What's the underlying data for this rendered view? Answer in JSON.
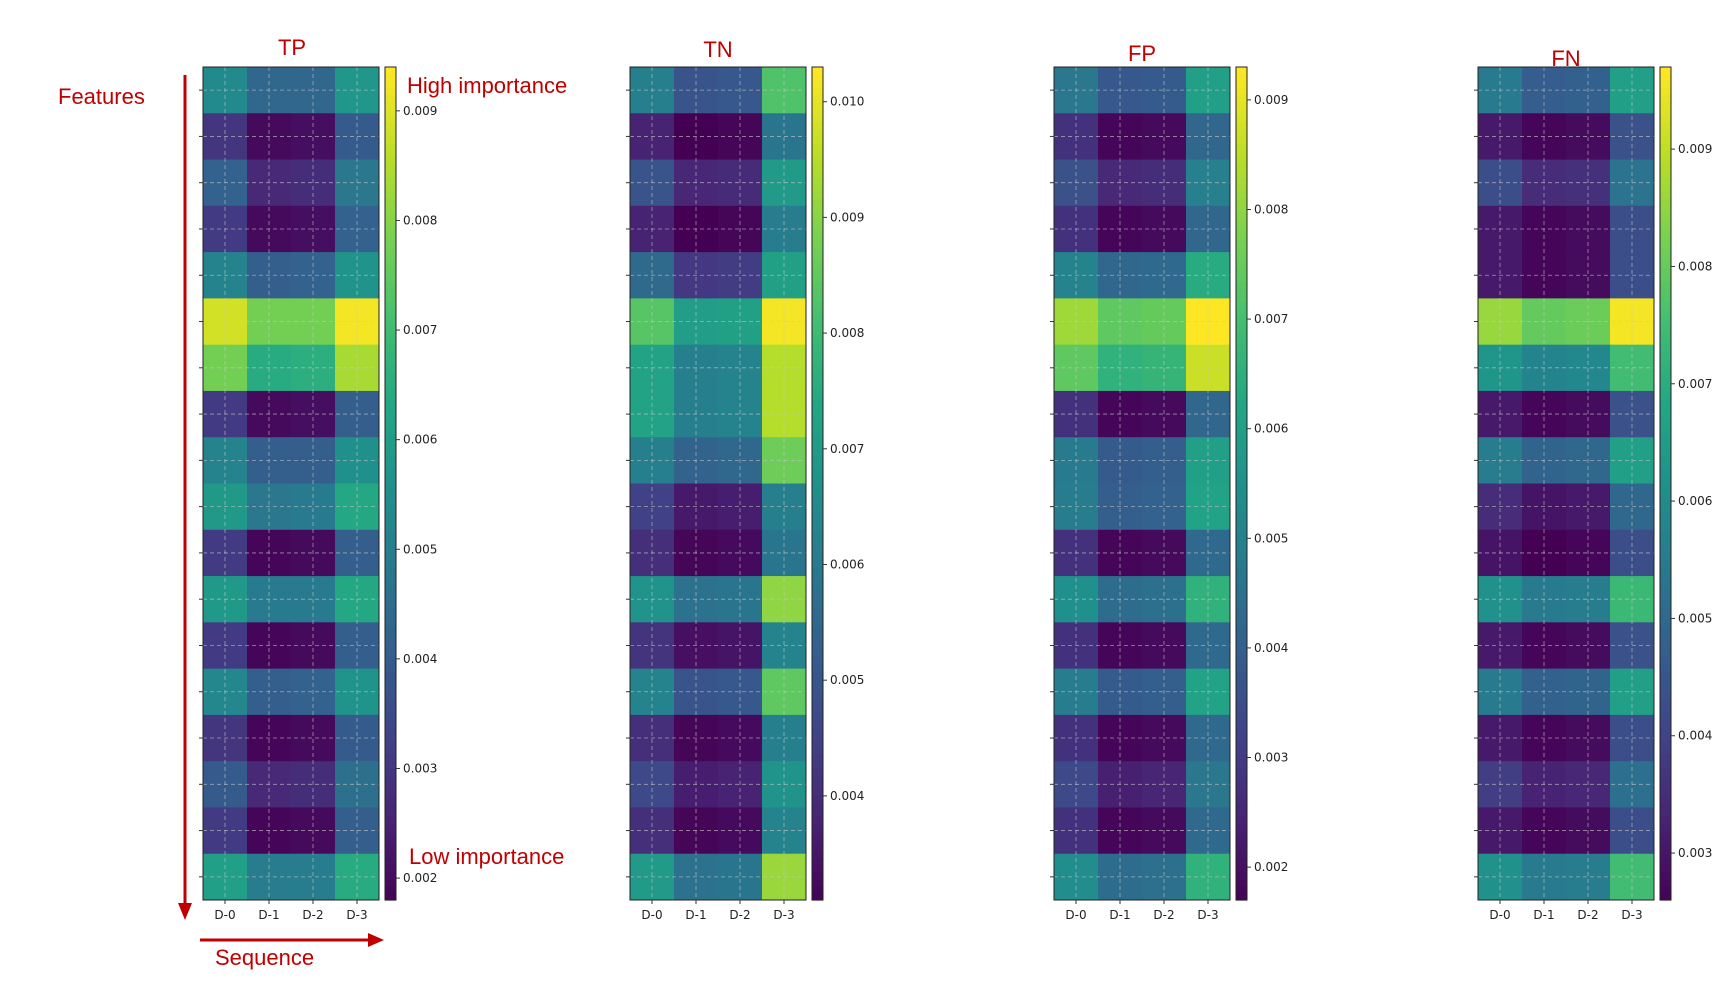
{
  "annotations": {
    "features": "Features",
    "sequence": "Sequence",
    "high_importance": "High importance",
    "low_importance": "Low importance",
    "arrow_color": "#c00000"
  },
  "chart_data": [
    {
      "type": "heatmap",
      "title": "TP",
      "colormap": "viridis",
      "xlabel": "",
      "ylabel": "",
      "x_tick_labels": [
        "D-0",
        "D-1",
        "D-2",
        "D-3"
      ],
      "rows": 18,
      "vmin": 0.0018,
      "vmax": 0.0094,
      "colorbar_ticks": [
        "0.002",
        "0.003",
        "0.004",
        "0.005",
        "0.006",
        "0.007",
        "0.008",
        "0.009"
      ],
      "grid": true,
      "values": [
        [
          0.0054,
          0.0043,
          0.0043,
          0.0058
        ],
        [
          0.003,
          0.002,
          0.0021,
          0.004
        ],
        [
          0.0042,
          0.0027,
          0.0028,
          0.0048
        ],
        [
          0.0031,
          0.002,
          0.0021,
          0.0042
        ],
        [
          0.0052,
          0.0041,
          0.0042,
          0.0057
        ],
        [
          0.0089,
          0.0078,
          0.0078,
          0.0093
        ],
        [
          0.0078,
          0.0065,
          0.0066,
          0.0084
        ],
        [
          0.0031,
          0.002,
          0.0021,
          0.0041
        ],
        [
          0.0052,
          0.0041,
          0.0041,
          0.0056
        ],
        [
          0.0059,
          0.0048,
          0.0049,
          0.0064
        ],
        [
          0.0031,
          0.0019,
          0.002,
          0.0041
        ],
        [
          0.0059,
          0.0049,
          0.0049,
          0.0064
        ],
        [
          0.0031,
          0.0019,
          0.002,
          0.0041
        ],
        [
          0.0053,
          0.0041,
          0.0042,
          0.0057
        ],
        [
          0.003,
          0.0019,
          0.002,
          0.004
        ],
        [
          0.004,
          0.0027,
          0.0028,
          0.0046
        ],
        [
          0.0031,
          0.0019,
          0.002,
          0.0041
        ],
        [
          0.0061,
          0.005,
          0.005,
          0.0065
        ]
      ]
    },
    {
      "type": "heatmap",
      "title": "TN",
      "colormap": "viridis",
      "xlabel": "",
      "ylabel": "",
      "x_tick_labels": [
        "D-0",
        "D-1",
        "D-2",
        "D-3"
      ],
      "rows": 18,
      "vmin": 0.0031,
      "vmax": 0.0103,
      "colorbar_ticks": [
        "0.004",
        "0.005",
        "0.006",
        "0.007",
        "0.008",
        "0.009",
        "0.010"
      ],
      "grid": true,
      "values": [
        [
          0.0062,
          0.005,
          0.0051,
          0.0083
        ],
        [
          0.0038,
          0.0031,
          0.0032,
          0.0059
        ],
        [
          0.005,
          0.0039,
          0.004,
          0.007
        ],
        [
          0.0038,
          0.0031,
          0.0032,
          0.0061
        ],
        [
          0.0056,
          0.0043,
          0.0044,
          0.0072
        ],
        [
          0.0084,
          0.0071,
          0.0072,
          0.0102
        ],
        [
          0.0073,
          0.0062,
          0.0063,
          0.0095
        ],
        [
          0.0073,
          0.0062,
          0.0063,
          0.0095
        ],
        [
          0.0062,
          0.0054,
          0.0055,
          0.0087
        ],
        [
          0.0045,
          0.0036,
          0.0037,
          0.0062
        ],
        [
          0.0041,
          0.0032,
          0.0033,
          0.0059
        ],
        [
          0.0068,
          0.0058,
          0.0059,
          0.0091
        ],
        [
          0.0042,
          0.0034,
          0.0035,
          0.0063
        ],
        [
          0.0063,
          0.005,
          0.0051,
          0.0085
        ],
        [
          0.0041,
          0.0032,
          0.0033,
          0.0062
        ],
        [
          0.0047,
          0.0037,
          0.0038,
          0.0068
        ],
        [
          0.0041,
          0.0032,
          0.0033,
          0.0063
        ],
        [
          0.007,
          0.0058,
          0.0059,
          0.0092
        ]
      ]
    },
    {
      "type": "heatmap",
      "title": "FP",
      "colormap": "viridis",
      "xlabel": "",
      "ylabel": "",
      "x_tick_labels": [
        "D-0",
        "D-1",
        "D-2",
        "D-3"
      ],
      "rows": 18,
      "vmin": 0.0017,
      "vmax": 0.0093,
      "colorbar_ticks": [
        "0.002",
        "0.003",
        "0.004",
        "0.005",
        "0.006",
        "0.007",
        "0.008",
        "0.009"
      ],
      "grid": true,
      "values": [
        [
          0.0047,
          0.0038,
          0.0039,
          0.006
        ],
        [
          0.0028,
          0.0018,
          0.0019,
          0.0042
        ],
        [
          0.0036,
          0.0026,
          0.0027,
          0.005
        ],
        [
          0.0028,
          0.0018,
          0.0019,
          0.0042
        ],
        [
          0.0051,
          0.0042,
          0.0043,
          0.0064
        ],
        [
          0.0082,
          0.0074,
          0.0075,
          0.0093
        ],
        [
          0.0074,
          0.0066,
          0.0067,
          0.0087
        ],
        [
          0.0028,
          0.0018,
          0.0019,
          0.0042
        ],
        [
          0.0048,
          0.0039,
          0.004,
          0.006
        ],
        [
          0.0049,
          0.004,
          0.0041,
          0.0061
        ],
        [
          0.0028,
          0.0018,
          0.0019,
          0.0043
        ],
        [
          0.0055,
          0.0044,
          0.0045,
          0.0066
        ],
        [
          0.0028,
          0.0018,
          0.0019,
          0.0043
        ],
        [
          0.0049,
          0.0039,
          0.004,
          0.0061
        ],
        [
          0.0028,
          0.0018,
          0.0019,
          0.0043
        ],
        [
          0.0034,
          0.0024,
          0.0025,
          0.0047
        ],
        [
          0.0028,
          0.0018,
          0.0019,
          0.0043
        ],
        [
          0.0054,
          0.0044,
          0.0045,
          0.0066
        ]
      ]
    },
    {
      "type": "heatmap",
      "title": "FN",
      "colormap": "viridis",
      "xlabel": "",
      "ylabel": "",
      "x_tick_labels": [
        "D-0",
        "D-1",
        "D-2",
        "D-3"
      ],
      "rows": 18,
      "vmin": 0.0026,
      "vmax": 0.0097,
      "colorbar_ticks": [
        "0.003",
        "0.004",
        "0.005",
        "0.006",
        "0.007",
        "0.008",
        "0.009"
      ],
      "grid": true,
      "values": [
        [
          0.0055,
          0.0047,
          0.0048,
          0.0066
        ],
        [
          0.0031,
          0.0027,
          0.0028,
          0.0044
        ],
        [
          0.0043,
          0.0035,
          0.0036,
          0.0053
        ],
        [
          0.0031,
          0.0027,
          0.0028,
          0.0043
        ],
        [
          0.0031,
          0.0027,
          0.0028,
          0.0043
        ],
        [
          0.0086,
          0.008,
          0.0081,
          0.0096
        ],
        [
          0.0063,
          0.0058,
          0.0059,
          0.0075
        ],
        [
          0.0031,
          0.0027,
          0.0028,
          0.0044
        ],
        [
          0.0056,
          0.0049,
          0.005,
          0.0066
        ],
        [
          0.0035,
          0.003,
          0.0031,
          0.005
        ],
        [
          0.003,
          0.0026,
          0.0027,
          0.0043
        ],
        [
          0.0062,
          0.0055,
          0.0056,
          0.0074
        ],
        [
          0.0031,
          0.0027,
          0.0028,
          0.0044
        ],
        [
          0.0055,
          0.0048,
          0.0049,
          0.0066
        ],
        [
          0.0031,
          0.0027,
          0.0028,
          0.0043
        ],
        [
          0.0039,
          0.0033,
          0.0034,
          0.0052
        ],
        [
          0.0031,
          0.0027,
          0.0028,
          0.0043
        ],
        [
          0.0062,
          0.0055,
          0.0056,
          0.0075
        ]
      ]
    }
  ]
}
